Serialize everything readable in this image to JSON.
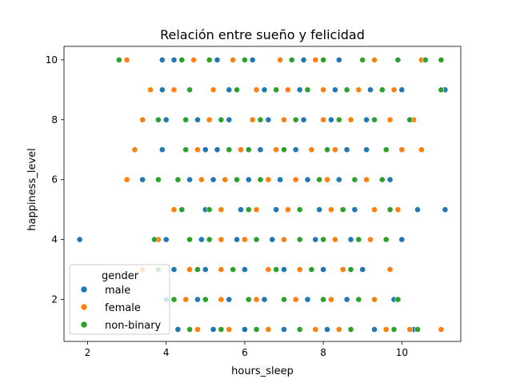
{
  "chart_data": {
    "type": "scatter",
    "title": "Relación entre sueño y felicidad",
    "xlabel": "hours_sleep",
    "ylabel": "happiness_level",
    "xlim": [
      1.4,
      11.5
    ],
    "ylim": [
      0.6,
      10.45
    ],
    "xticks": [
      2,
      4,
      6,
      8,
      10
    ],
    "yticks": [
      2,
      4,
      6,
      8,
      10
    ],
    "grid": false,
    "legend": {
      "title": "gender",
      "position": "lower-left"
    },
    "series": [
      {
        "name": "male",
        "color": "#1f77b4",
        "points": [
          [
            1.8,
            4
          ],
          [
            3.9,
            10
          ],
          [
            4.2,
            10
          ],
          [
            5.3,
            10
          ],
          [
            6.2,
            10
          ],
          [
            7.5,
            10
          ],
          [
            8.4,
            10
          ],
          [
            3.9,
            9
          ],
          [
            5.6,
            9
          ],
          [
            6.5,
            9
          ],
          [
            7.4,
            9
          ],
          [
            8.3,
            9
          ],
          [
            9.2,
            9
          ],
          [
            10.0,
            9
          ],
          [
            11.1,
            9
          ],
          [
            4.0,
            8
          ],
          [
            4.8,
            8
          ],
          [
            5.6,
            8
          ],
          [
            6.6,
            8
          ],
          [
            7.5,
            8
          ],
          [
            8.2,
            8
          ],
          [
            9.1,
            8
          ],
          [
            3.9,
            7
          ],
          [
            5.0,
            7
          ],
          [
            5.3,
            7
          ],
          [
            6.4,
            7
          ],
          [
            7.3,
            7
          ],
          [
            8.6,
            7
          ],
          [
            9.1,
            7
          ],
          [
            3.4,
            6
          ],
          [
            4.6,
            6
          ],
          [
            5.2,
            6
          ],
          [
            6.1,
            6
          ],
          [
            6.9,
            6
          ],
          [
            7.6,
            6
          ],
          [
            8.4,
            6
          ],
          [
            9.7,
            6
          ],
          [
            5.0,
            5
          ],
          [
            5.9,
            5
          ],
          [
            6.8,
            5
          ],
          [
            7.9,
            5
          ],
          [
            8.8,
            5
          ],
          [
            10.4,
            5
          ],
          [
            11.1,
            5
          ],
          [
            4.0,
            4
          ],
          [
            4.9,
            4
          ],
          [
            5.8,
            4
          ],
          [
            6.7,
            4
          ],
          [
            7.8,
            4
          ],
          [
            8.7,
            4
          ],
          [
            10.0,
            4
          ],
          [
            4.2,
            3
          ],
          [
            5.0,
            3
          ],
          [
            6.0,
            3
          ],
          [
            7.0,
            3
          ],
          [
            8.0,
            3
          ],
          [
            9.0,
            3
          ],
          [
            4.0,
            2
          ],
          [
            4.8,
            2
          ],
          [
            5.6,
            2
          ],
          [
            6.5,
            2
          ],
          [
            7.6,
            2
          ],
          [
            8.6,
            2
          ],
          [
            9.8,
            2
          ],
          [
            4.3,
            1
          ],
          [
            5.2,
            1
          ],
          [
            6.0,
            1
          ],
          [
            7.0,
            1
          ],
          [
            8.1,
            1
          ],
          [
            9.3,
            1
          ],
          [
            10.3,
            1
          ]
        ]
      },
      {
        "name": "female",
        "color": "#ff7f0e",
        "points": [
          [
            3.0,
            10
          ],
          [
            4.7,
            10
          ],
          [
            5.7,
            10
          ],
          [
            6.9,
            10
          ],
          [
            7.8,
            10
          ],
          [
            9.3,
            10
          ],
          [
            10.5,
            10
          ],
          [
            3.6,
            9
          ],
          [
            4.2,
            9
          ],
          [
            5.2,
            9
          ],
          [
            6.3,
            9
          ],
          [
            7.1,
            9
          ],
          [
            8.0,
            9
          ],
          [
            8.9,
            9
          ],
          [
            9.8,
            9
          ],
          [
            3.4,
            8
          ],
          [
            5.1,
            8
          ],
          [
            6.2,
            8
          ],
          [
            7.0,
            8
          ],
          [
            8.0,
            8
          ],
          [
            8.7,
            8
          ],
          [
            9.7,
            8
          ],
          [
            10.3,
            8
          ],
          [
            3.2,
            7
          ],
          [
            4.8,
            7
          ],
          [
            5.9,
            7
          ],
          [
            6.8,
            7
          ],
          [
            7.7,
            7
          ],
          [
            8.3,
            7
          ],
          [
            10.0,
            7
          ],
          [
            10.5,
            7
          ],
          [
            3.0,
            6
          ],
          [
            4.9,
            6
          ],
          [
            5.5,
            6
          ],
          [
            6.6,
            6
          ],
          [
            7.3,
            6
          ],
          [
            8.1,
            6
          ],
          [
            9.1,
            6
          ],
          [
            4.2,
            5
          ],
          [
            5.4,
            5
          ],
          [
            6.3,
            5
          ],
          [
            7.1,
            5
          ],
          [
            8.2,
            5
          ],
          [
            9.3,
            5
          ],
          [
            9.9,
            5
          ],
          [
            3.8,
            4
          ],
          [
            5.4,
            4
          ],
          [
            6.0,
            4
          ],
          [
            7.0,
            4
          ],
          [
            8.3,
            4
          ],
          [
            9.2,
            4
          ],
          [
            3.4,
            3
          ],
          [
            4.6,
            3
          ],
          [
            5.4,
            3
          ],
          [
            6.6,
            3
          ],
          [
            7.4,
            3
          ],
          [
            8.5,
            3
          ],
          [
            9.7,
            3
          ],
          [
            4.5,
            2
          ],
          [
            5.4,
            2
          ],
          [
            6.3,
            2
          ],
          [
            7.3,
            2
          ],
          [
            8.2,
            2
          ],
          [
            9.3,
            2
          ],
          [
            4.8,
            1
          ],
          [
            5.6,
            1
          ],
          [
            6.6,
            1
          ],
          [
            7.8,
            1
          ],
          [
            8.4,
            1
          ],
          [
            9.6,
            1
          ],
          [
            10.2,
            1
          ],
          [
            11.0,
            1
          ]
        ]
      },
      {
        "name": "non-binary",
        "color": "#2ca02c",
        "points": [
          [
            2.8,
            10
          ],
          [
            4.4,
            10
          ],
          [
            5.1,
            10
          ],
          [
            6.0,
            10
          ],
          [
            7.2,
            10
          ],
          [
            8.0,
            10
          ],
          [
            9.0,
            10
          ],
          [
            9.9,
            10
          ],
          [
            10.6,
            10
          ],
          [
            11.0,
            10
          ],
          [
            4.6,
            9
          ],
          [
            5.8,
            9
          ],
          [
            6.8,
            9
          ],
          [
            7.6,
            9
          ],
          [
            8.6,
            9
          ],
          [
            9.5,
            9
          ],
          [
            11.0,
            9
          ],
          [
            3.8,
            8
          ],
          [
            4.5,
            8
          ],
          [
            5.4,
            8
          ],
          [
            6.4,
            8
          ],
          [
            7.3,
            8
          ],
          [
            8.4,
            8
          ],
          [
            9.3,
            8
          ],
          [
            10.2,
            8
          ],
          [
            4.5,
            7
          ],
          [
            5.6,
            7
          ],
          [
            6.1,
            7
          ],
          [
            7.0,
            7
          ],
          [
            8.1,
            7
          ],
          [
            9.6,
            7
          ],
          [
            3.8,
            6
          ],
          [
            4.3,
            6
          ],
          [
            5.8,
            6
          ],
          [
            6.4,
            6
          ],
          [
            7.9,
            6
          ],
          [
            8.8,
            6
          ],
          [
            9.5,
            6
          ],
          [
            4.4,
            5
          ],
          [
            5.1,
            5
          ],
          [
            6.1,
            5
          ],
          [
            7.4,
            5
          ],
          [
            8.5,
            5
          ],
          [
            9.7,
            5
          ],
          [
            3.7,
            4
          ],
          [
            4.6,
            4
          ],
          [
            5.1,
            4
          ],
          [
            6.3,
            4
          ],
          [
            7.4,
            4
          ],
          [
            8.0,
            4
          ],
          [
            8.9,
            4
          ],
          [
            9.6,
            4
          ],
          [
            3.8,
            3
          ],
          [
            4.8,
            3
          ],
          [
            5.7,
            3
          ],
          [
            6.8,
            3
          ],
          [
            7.7,
            3
          ],
          [
            8.7,
            3
          ],
          [
            4.2,
            2
          ],
          [
            5.0,
            2
          ],
          [
            6.1,
            2
          ],
          [
            7.0,
            2
          ],
          [
            8.0,
            2
          ],
          [
            8.9,
            2
          ],
          [
            9.9,
            2
          ],
          [
            4.6,
            1
          ],
          [
            5.4,
            1
          ],
          [
            6.3,
            1
          ],
          [
            7.4,
            1
          ],
          [
            8.7,
            1
          ],
          [
            9.8,
            1
          ],
          [
            10.4,
            1
          ]
        ]
      }
    ]
  }
}
